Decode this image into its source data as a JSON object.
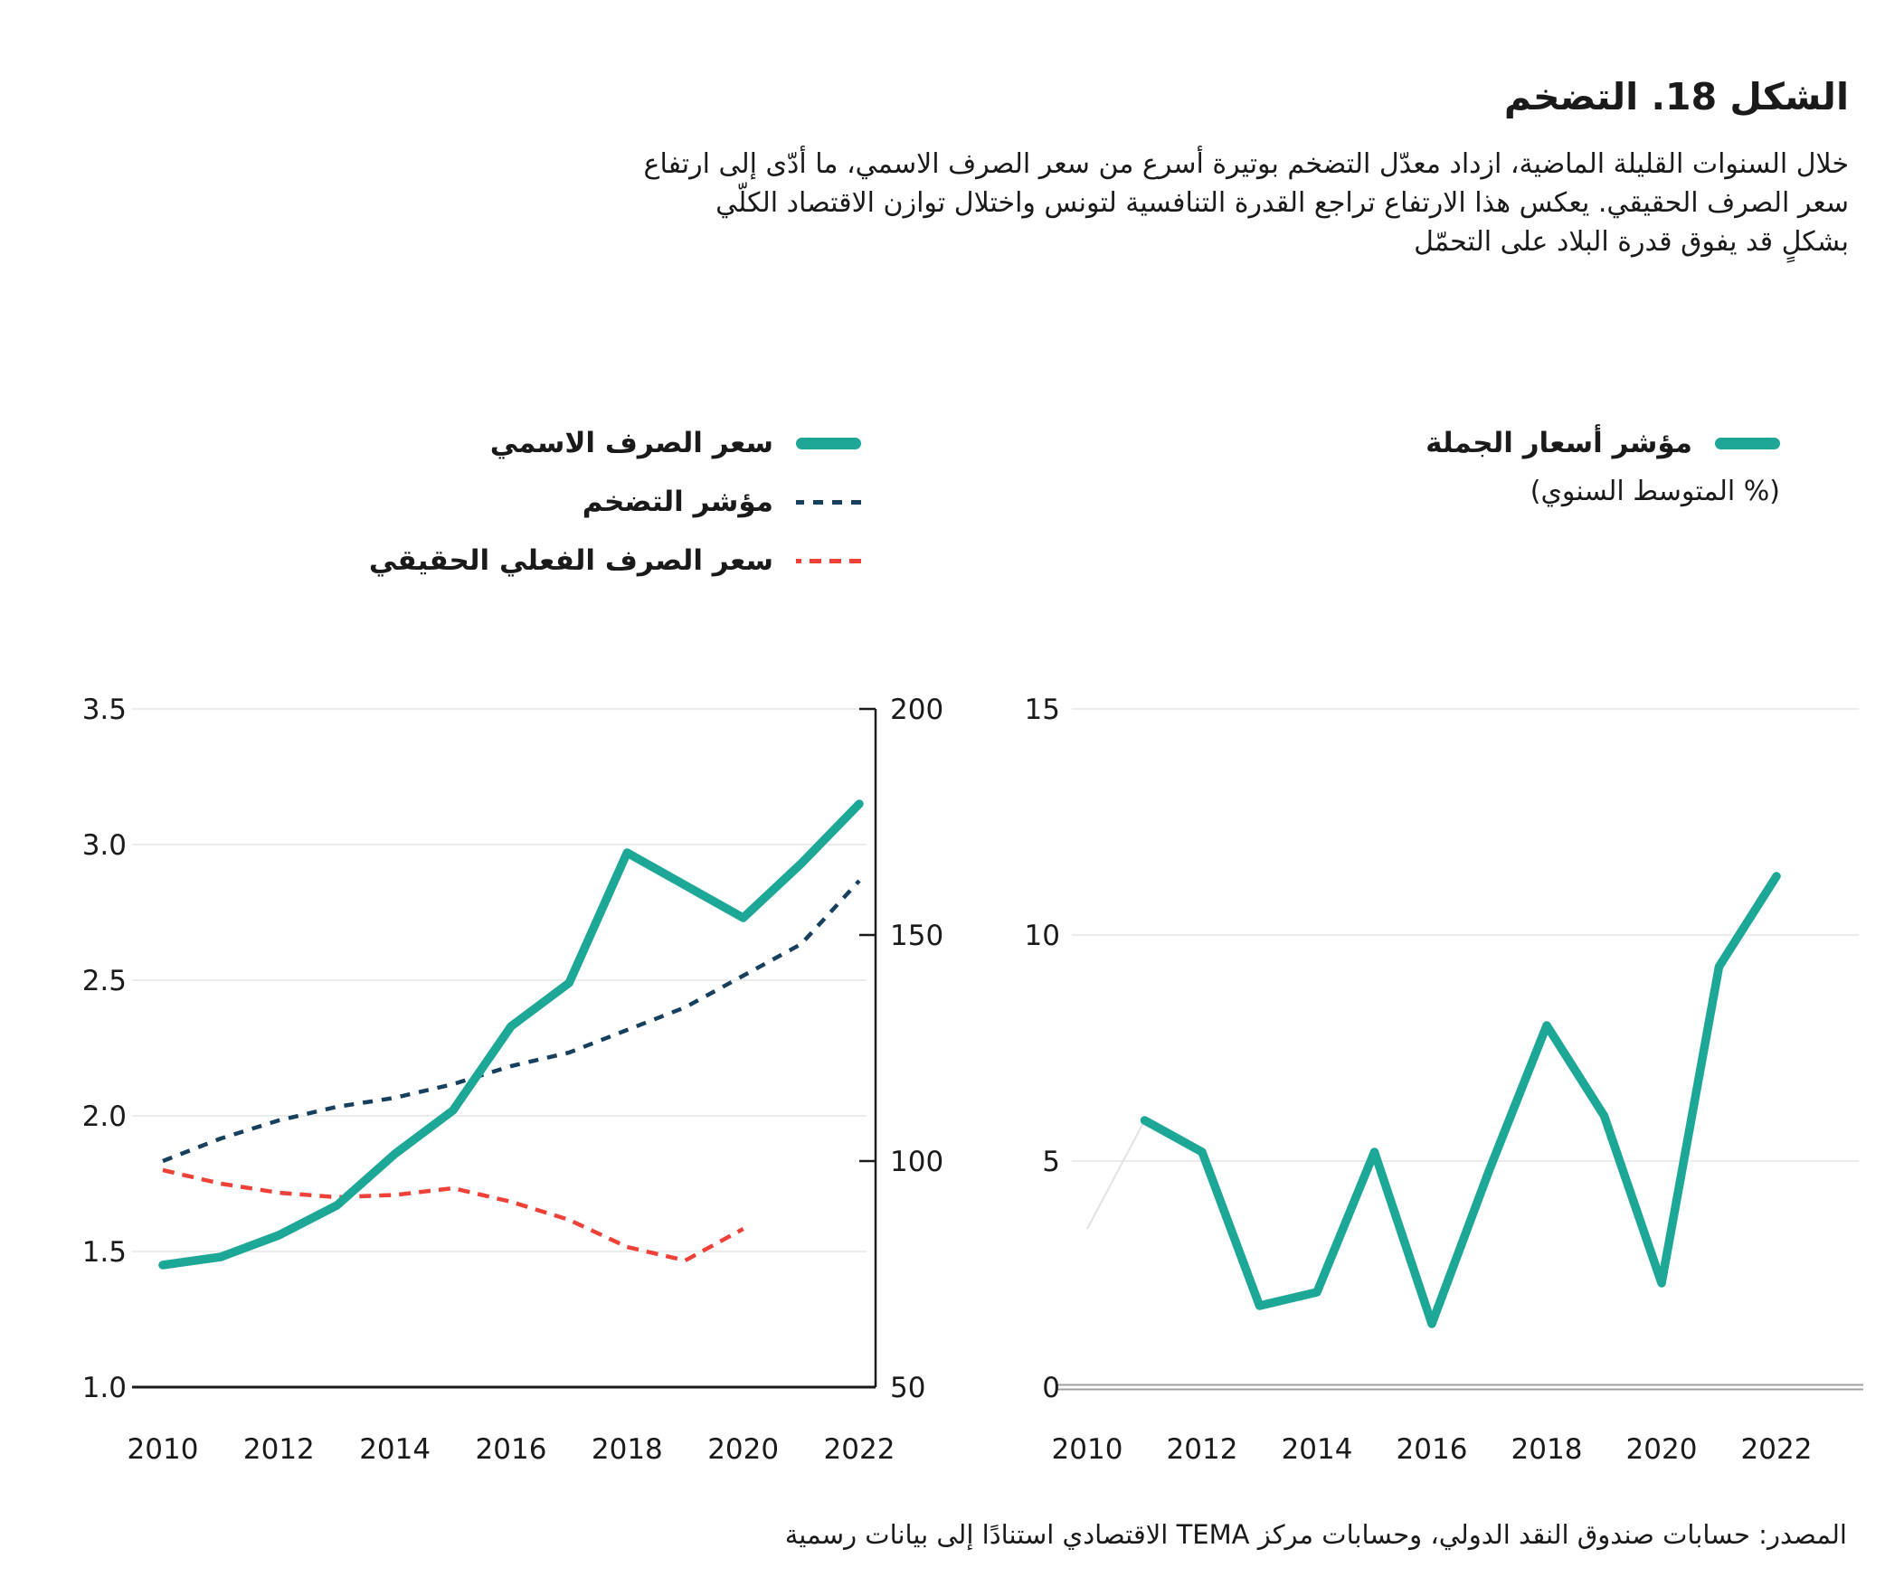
{
  "title": "الشكل 18. التضخم",
  "description_lines": [
    "خلال السنوات القليلة الماضية، ازداد معدّل التضخم بوتيرة أسرع من سعر الصرف الاسمي، ما أدّى إلى ارتفاع",
    "سعر الصرف الحقيقي. يعكس هذا الارتفاع تراجع القدرة التنافسية لتونس واختلال توازن الاقتصاد الكلّي",
    "بشكلٍ قد يفوق قدرة البلاد على التحمّل"
  ],
  "source": "المصدر: حسابات صندوق النقد الدولي،  وحسابات مركز TEMA الاقتصادي استنادًا إلى بيانات رسمية",
  "colors": {
    "teal": "#1CA796",
    "navy": "#16405E",
    "red": "#F04139",
    "ghost": "#E2E2E2",
    "grid": "#ECECEC",
    "axis": "#1A1A1A",
    "baseline_gray": "#A0A0A0",
    "text": "#1A1A1A"
  },
  "legend_left": [
    {
      "label": "سعر الصرف الاسمي",
      "style": "solid",
      "color": "teal"
    },
    {
      "label": "مؤشر التضخم",
      "style": "dashed",
      "color": "navy"
    },
    {
      "label": "سعر الصرف الفعلي الحقيقي",
      "style": "dashed",
      "color": "red"
    }
  ],
  "legend_right": {
    "label": "مؤشر أسعار الجملة",
    "sub": "(% المتوسط السنوي)",
    "style": "solid",
    "color": "teal"
  },
  "chart_data": [
    {
      "type": "line",
      "panel": "exchange-rate-and-inflation",
      "x": [
        2010,
        2011,
        2012,
        2013,
        2014,
        2015,
        2016,
        2017,
        2018,
        2019,
        2020,
        2021,
        2022
      ],
      "x_ticks": [
        "2010",
        "2012",
        "2014",
        "2016",
        "2018",
        "2020",
        "2022"
      ],
      "left_axis": {
        "min": 1.0,
        "max": 3.5,
        "ticks": [
          "3.5",
          "3.0",
          "2.5",
          "2.0",
          "1.5",
          "1.0"
        ]
      },
      "right_axis": {
        "min": 50,
        "max": 200,
        "ticks": [
          "200",
          "150",
          "100",
          "50"
        ]
      },
      "grid": true,
      "series": [
        {
          "name": "مؤشر التضخم",
          "axis": "right",
          "style": "dashed",
          "color": "navy",
          "values": [
            100,
            105,
            109,
            112,
            114,
            117,
            121,
            124,
            129,
            134,
            141,
            148,
            162
          ]
        },
        {
          "name": "سعر الصرف الفعلي الحقيقي",
          "axis": "right",
          "style": "dashed",
          "color": "red",
          "values": [
            98,
            95,
            93,
            92,
            92.5,
            94,
            91,
            87,
            81,
            78,
            85,
            null,
            null
          ]
        },
        {
          "name": "سعر الصرف الاسمي",
          "axis": "left",
          "style": "solid",
          "color": "teal",
          "values": [
            1.45,
            1.48,
            1.56,
            1.67,
            1.86,
            2.02,
            2.33,
            2.49,
            2.97,
            2.85,
            2.73,
            2.93,
            3.15
          ]
        }
      ]
    },
    {
      "type": "line",
      "panel": "wholesale-price-index",
      "x": [
        2010,
        2011,
        2012,
        2013,
        2014,
        2015,
        2016,
        2017,
        2018,
        2019,
        2020,
        2021,
        2022
      ],
      "x_ticks": [
        "2010",
        "2012",
        "2014",
        "2016",
        "2018",
        "2020",
        "2022"
      ],
      "y_axis": {
        "min": 0,
        "max": 15,
        "ticks": [
          "15",
          "10",
          "5",
          "0"
        ]
      },
      "grid": true,
      "series": [
        {
          "name": "lead-in-2010",
          "style": "ghost",
          "color": "ghost",
          "values": [
            3.5,
            5.9,
            null,
            null,
            null,
            null,
            null,
            null,
            null,
            null,
            null,
            null,
            null
          ]
        },
        {
          "name": "مؤشر أسعار الجملة",
          "style": "solid",
          "color": "teal",
          "values": [
            null,
            5.9,
            5.2,
            1.8,
            2.1,
            5.2,
            1.4,
            4.8,
            8.0,
            6.0,
            2.3,
            9.3,
            11.3
          ]
        }
      ]
    }
  ]
}
